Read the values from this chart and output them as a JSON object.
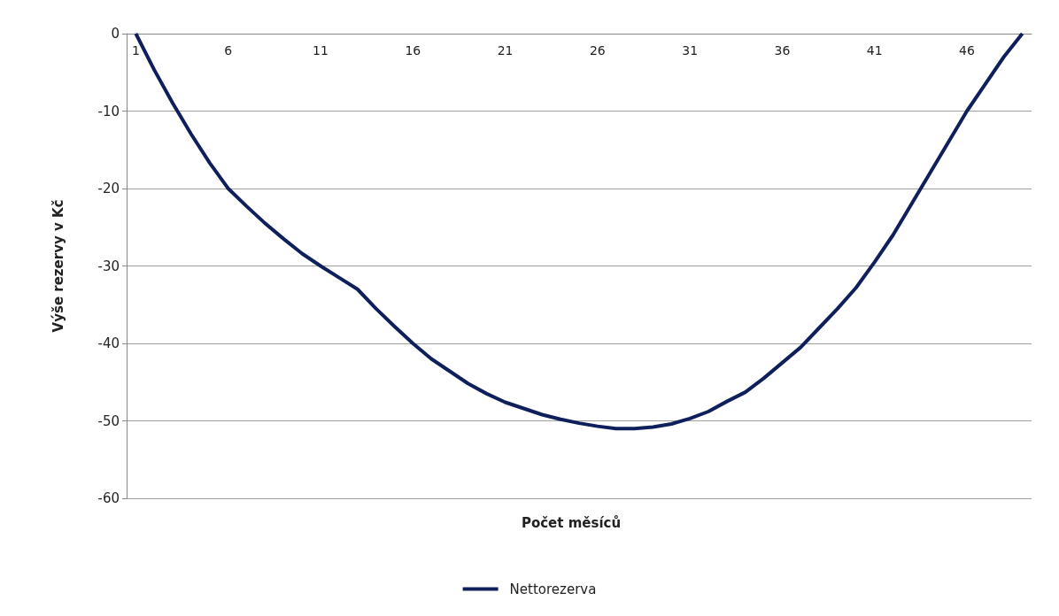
{
  "chart_data": {
    "type": "line",
    "xlabel": "Počet měsíců",
    "ylabel": "Výše rezervy v Kč",
    "categories": [
      "1",
      null,
      null,
      null,
      null,
      "6",
      null,
      null,
      null,
      null,
      "11",
      null,
      null,
      null,
      null,
      "16",
      null,
      null,
      null,
      null,
      "21",
      null,
      null,
      null,
      null,
      "26",
      null,
      null,
      null,
      null,
      "31",
      null,
      null,
      null,
      null,
      "36",
      null,
      null,
      null,
      null,
      "41",
      null,
      null,
      null,
      null,
      "46",
      null,
      null,
      null
    ],
    "series": [
      {
        "name": "Nettorezerva",
        "color": "#0f1f5c",
        "values": [
          0,
          -4.7,
          -9,
          -13,
          -16.7,
          -20,
          -22.3,
          -24.5,
          -26.5,
          -28.4,
          -30,
          -31.5,
          -33,
          -35.5,
          -37.8,
          -40,
          -42,
          -43.6,
          -45.2,
          -46.5,
          -47.6,
          -48.4,
          -49.2,
          -49.8,
          -50.3,
          -50.7,
          -51,
          -51,
          -50.8,
          -50.4,
          -49.7,
          -48.8,
          -47.5,
          -46.3,
          -44.5,
          -42.5,
          -40.5,
          -38,
          -35.5,
          -32.8,
          -29.5,
          -26,
          -22,
          -18,
          -14,
          -10,
          -6.5,
          -3,
          0
        ]
      }
    ],
    "ylim": [
      -60,
      0
    ],
    "yticks": [
      -60,
      -50,
      -40,
      -30,
      -20,
      -10,
      0
    ],
    "grid": "y",
    "legend": "bottom",
    "marker": "none",
    "line_style": "solid"
  }
}
